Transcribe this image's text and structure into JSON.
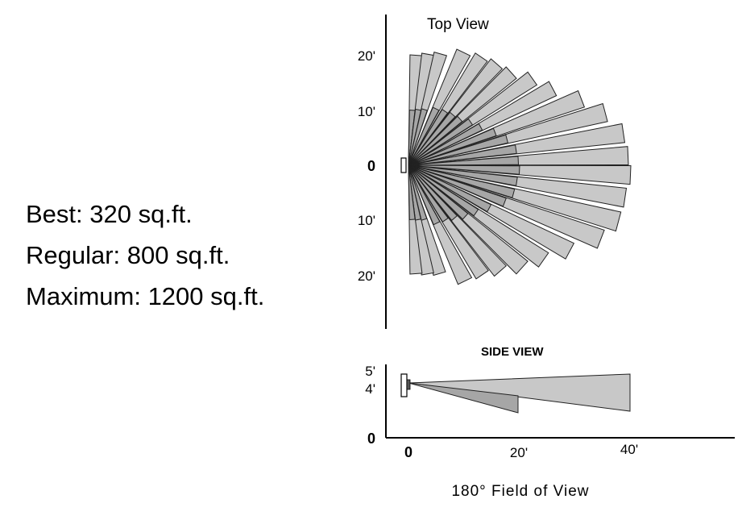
{
  "coverage": [
    {
      "label": "Best: 320 sq.ft."
    },
    {
      "label": "Regular: 800 sq.ft."
    },
    {
      "label": "Maximum: 1200 sq.ft."
    }
  ],
  "top_view": {
    "title": "Top View",
    "tick_labels": [
      "20'",
      "10'",
      "0",
      "10'",
      "20'"
    ]
  },
  "side_view": {
    "title": "SIDE VIEW",
    "y_tick_labels": [
      "5'",
      "4'",
      "0"
    ],
    "x_tick_labels": [
      "0",
      "20'",
      "40'"
    ]
  },
  "caption": "180° Field of View",
  "colors": {
    "beam_fill": "#c8c8c8",
    "beam_near_fill": "#a6a6a6",
    "outline": "#222222"
  }
}
